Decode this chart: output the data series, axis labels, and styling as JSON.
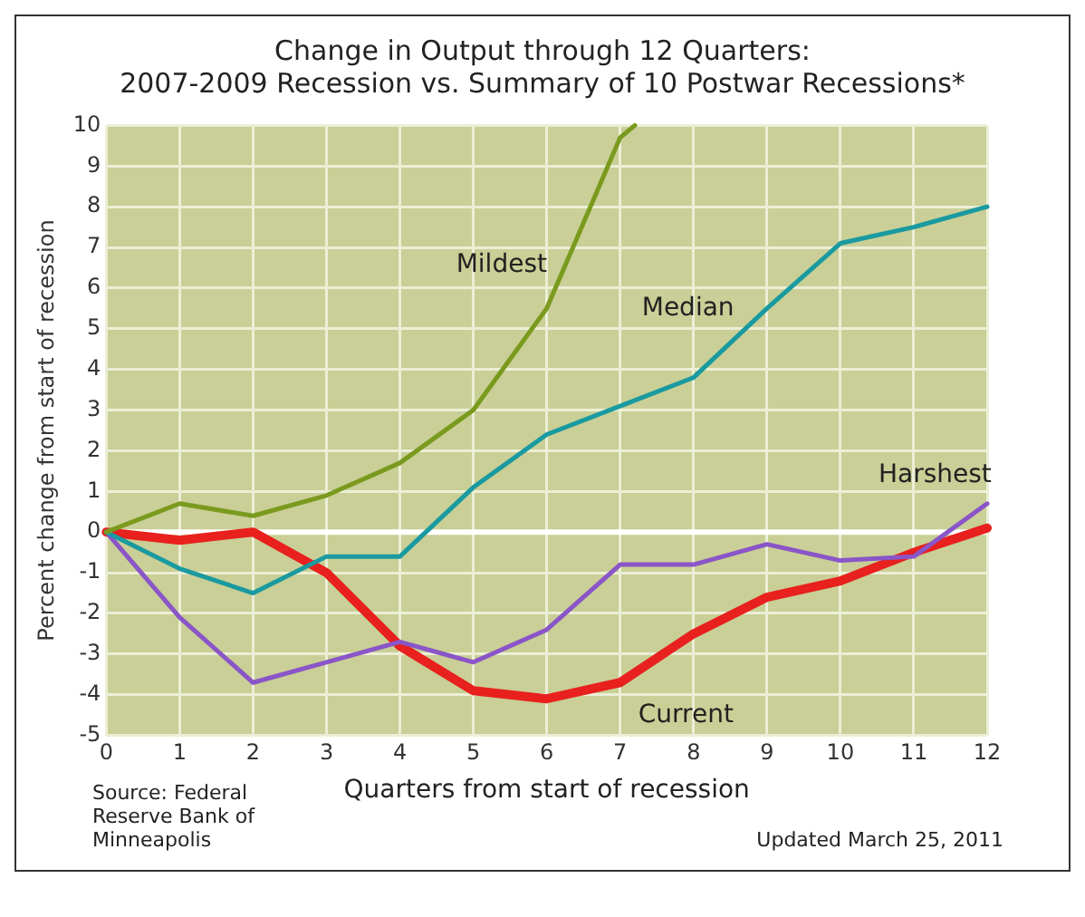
{
  "chart_data": {
    "type": "line",
    "title": "Change in Output through 12 Quarters:",
    "subtitle": "2007-2009 Recession vs. Summary of 10 Postwar Recessions*",
    "xlabel": "Quarters from start of recession",
    "ylabel": "Percent change from start of recession",
    "annotations": [
      "Source: Federal Reserve Bank of Minneapolis",
      "Updated March 25, 2011"
    ],
    "x": [
      0,
      1,
      2,
      3,
      4,
      5,
      6,
      7,
      8,
      9,
      10,
      11,
      12
    ],
    "series": [
      {
        "name": "Mildest",
        "color": "#7a9a1e",
        "x": [
          0,
          1,
          2,
          3,
          4,
          5,
          6,
          7,
          7.2
        ],
        "values": [
          0,
          0.7,
          0.4,
          0.9,
          1.7,
          3,
          5.5,
          9.7,
          10
        ]
      },
      {
        "name": "Median",
        "color": "#1a9aa0",
        "values": [
          0,
          -0.9,
          -1.5,
          -0.6,
          -0.6,
          1.1,
          2.4,
          3.1,
          3.8,
          5.5,
          7.1,
          7.5,
          8.0
        ]
      },
      {
        "name": "Harshest",
        "color": "#8a55c8",
        "values": [
          0,
          -2.1,
          -3.7,
          -3.2,
          -2.7,
          -3.2,
          -2.4,
          -0.8,
          -0.8,
          -0.3,
          -0.7,
          -0.6,
          0.7
        ]
      },
      {
        "name": "Current",
        "color": "#e8201e",
        "values": [
          0,
          -0.2,
          0,
          -1,
          -2.8,
          -3.9,
          -4.1,
          -3.7,
          -2.5,
          -1.6,
          -1.2,
          -0.5,
          0.1
        ]
      }
    ],
    "xlim": [
      0,
      12
    ],
    "xticks": [
      0,
      1,
      2,
      3,
      4,
      5,
      6,
      7,
      8,
      9,
      10,
      11,
      12
    ],
    "ylim": [
      -5,
      10
    ],
    "yticks": [
      -5,
      -4,
      -3,
      -2,
      -1,
      0,
      1,
      2,
      3,
      4,
      5,
      6,
      7,
      8,
      9,
      10
    ],
    "ref_lines": [
      {
        "axis": "y",
        "value": 0,
        "color": "#ffffff"
      }
    ],
    "grid": true,
    "legend": false,
    "marker": "none",
    "line_style": "solid"
  }
}
